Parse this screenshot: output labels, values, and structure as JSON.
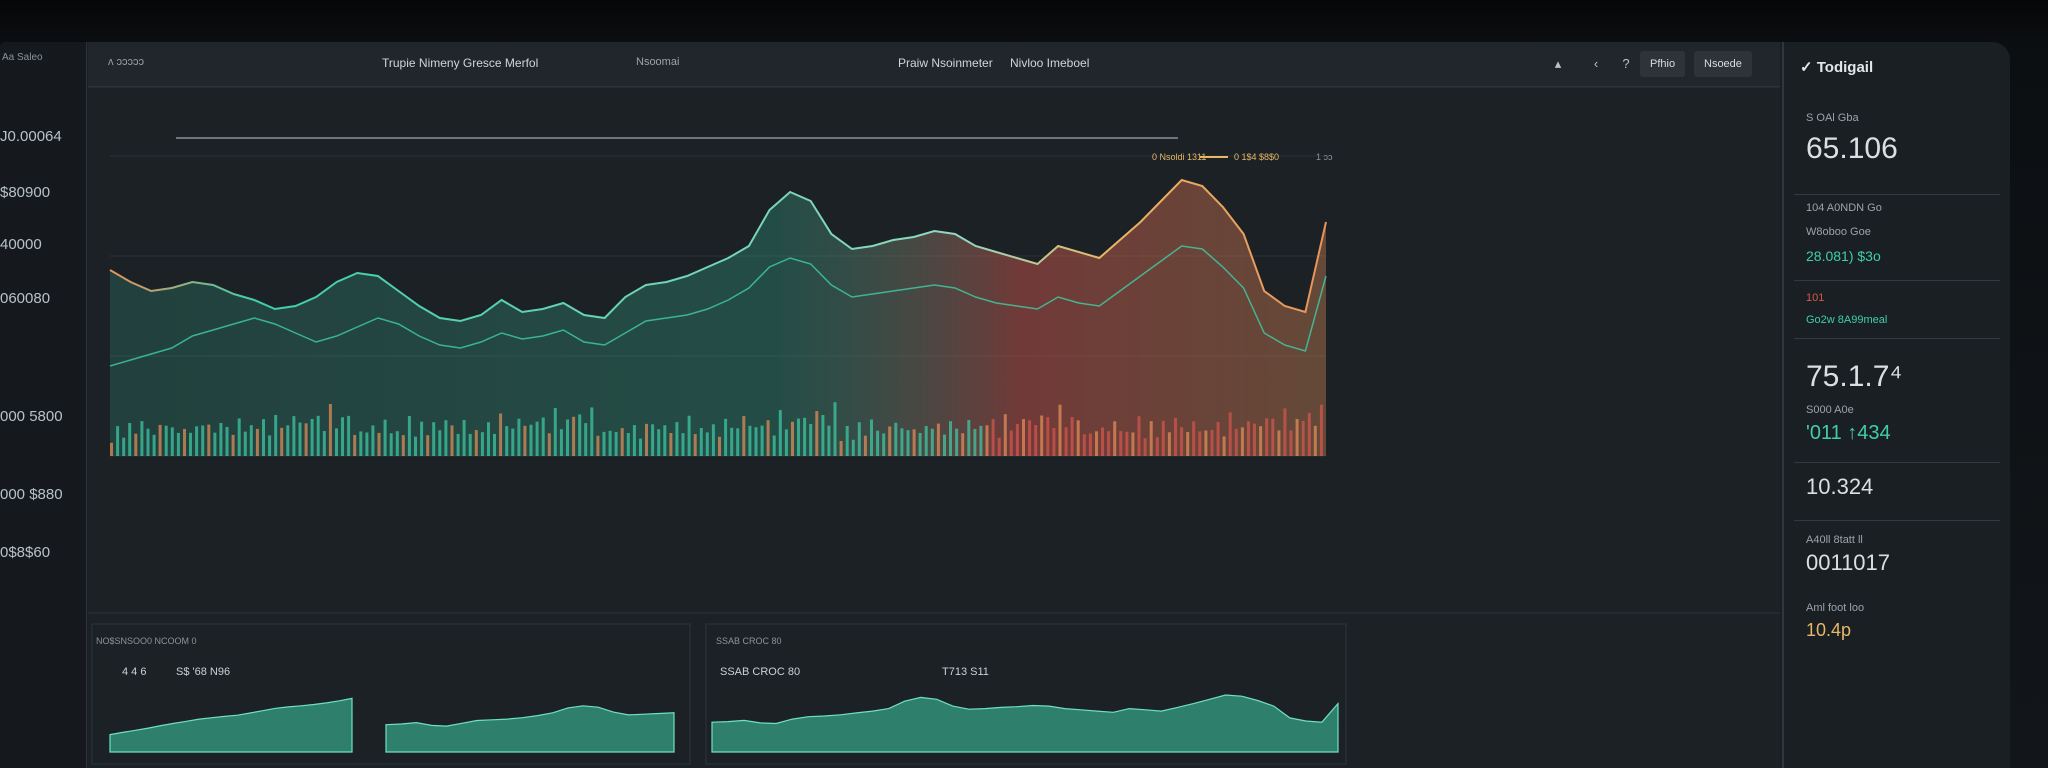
{
  "colors": {
    "green": "#3ecfa8",
    "orange": "#e8925a",
    "red": "#d9574e",
    "amber": "#e8b766",
    "panel": "#1c2126"
  },
  "left_axis": {
    "top": "Aa Saleo",
    "values": [
      "J0.00064",
      "$80900",
      "40000",
      "060080",
      "000 5800",
      "000 $880",
      "0$8$60"
    ]
  },
  "topbar": {
    "back_label": "ʌ ɔɔɔɔɔ",
    "title": "Trupie Nimeny Gresce Merfol",
    "sub1": "Nsoomai",
    "sub2": "Praiw Nsoinmeter",
    "sub3": "Nivloo Imeboel",
    "btn1": "Pfhio",
    "btn2": "Nsoede"
  },
  "legend": {
    "a": "0 Nsoldi 1311",
    "b": "0 1$4 $8$0",
    "c": "1 ɔɔ"
  },
  "lower_left": {
    "title": "NO$SNSOO0 NCOOM 0",
    "stat1": "4 4 6",
    "stat2": "S$ '68 N96"
  },
  "lower_right": {
    "title": "SSAB CROC 80",
    "stat1": "T713 S11"
  },
  "sidebar": {
    "title": "Todigail",
    "lbl1": "S OAl Gba",
    "val1": "65.106",
    "lbl2": "104 A0NDN Go",
    "lbl3": "W8oboo Goe",
    "val3": "28.081) $3o",
    "lbl4": "101",
    "lbl5": "Go2w 8A99meal",
    "val5": "75.1.7⁴",
    "lbl6": "S000 A0e",
    "val6": "'011 ↑434",
    "val7": "10.324",
    "lbl8": "A40ll 8tatt ll",
    "val8": "0011017",
    "lbl9": "Aml foot loo",
    "val9": "10.4p"
  },
  "chart_data": {
    "type": "line",
    "title": "",
    "series": [
      {
        "values": [
          62,
          58,
          55,
          56,
          58,
          57,
          54,
          52,
          49,
          50,
          53,
          58,
          61,
          60,
          55,
          50,
          46,
          45,
          47,
          52,
          48,
          49,
          51,
          47,
          46,
          53,
          57,
          58,
          60,
          63,
          66,
          70,
          82,
          88,
          85,
          74,
          69,
          70,
          72,
          73,
          75,
          74,
          70,
          68,
          66,
          64,
          70,
          68,
          66,
          72,
          78,
          85,
          92,
          90,
          83,
          74,
          55,
          50,
          48,
          78
        ]
      },
      {
        "values": [
          30,
          32,
          34,
          36,
          40,
          42,
          44,
          46,
          44,
          41,
          38,
          40,
          43,
          46,
          44,
          40,
          37,
          36,
          38,
          41,
          39,
          40,
          42,
          38,
          37,
          41,
          45,
          46,
          47,
          49,
          52,
          56,
          63,
          66,
          64,
          57,
          53,
          54,
          55,
          56,
          57,
          56,
          53,
          51,
          50,
          49,
          53,
          51,
          50,
          55,
          60,
          65,
          70,
          69,
          63,
          56,
          41,
          37,
          35,
          60
        ]
      }
    ],
    "bars": [
      22,
      30,
      26,
      34,
      28,
      38,
      31,
      25,
      33,
      40,
      29,
      35,
      27,
      36,
      30,
      41,
      33,
      28,
      37,
      32,
      26,
      39,
      34,
      31,
      44,
      37,
      30,
      42,
      36,
      33,
      46,
      39,
      35,
      48,
      41,
      37,
      52,
      44,
      39,
      55
    ]
  }
}
